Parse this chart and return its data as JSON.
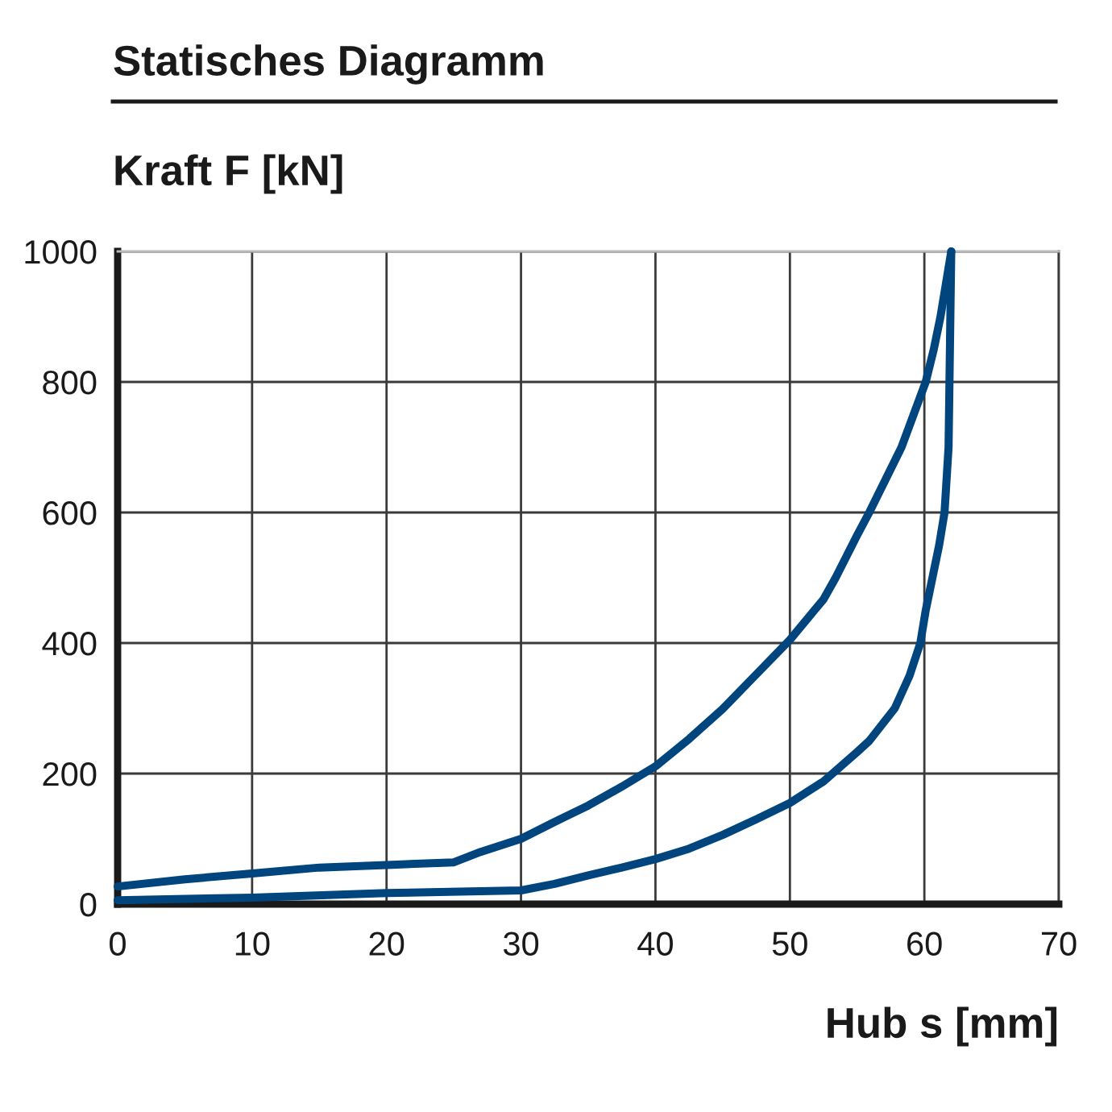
{
  "chart_data": {
    "type": "line",
    "title": "Statisches Diagramm",
    "xlabel": "Hub s [mm]",
    "ylabel": "Kraft F [kN]",
    "xlim": [
      0,
      70
    ],
    "xticks": [
      0,
      10,
      20,
      30,
      40,
      50,
      60,
      70
    ],
    "ylim": [
      0,
      1000
    ],
    "yticks": [
      0,
      200,
      400,
      600,
      800,
      1000
    ],
    "grid": true,
    "line_style": "solid",
    "series": [
      {
        "color": "#00457e",
        "x": [
          0,
          5,
          10,
          15,
          20,
          25,
          27,
          30,
          32.5,
          35,
          37.5,
          40,
          42.5,
          45,
          47.5,
          50,
          52.5,
          53.4,
          55,
          55.9,
          57.1,
          58.3,
          59.2,
          60.1,
          60.7,
          61.2,
          61.6,
          62.0
        ],
        "values": [
          27,
          38,
          47,
          56,
          60,
          64,
          80,
          100,
          126,
          151,
          180,
          211,
          253,
          299,
          352,
          405,
          467,
          500,
          565,
          600,
          650,
          700,
          750,
          800,
          850,
          900,
          950,
          1000
        ]
      },
      {
        "color": "#00457e",
        "x": [
          0,
          10,
          20,
          30,
          32.5,
          35,
          37.5,
          40,
          42.5,
          45,
          47.5,
          50,
          52.5,
          55,
          55.9,
          57.8,
          58.9,
          59.7,
          60.1,
          60.6,
          61.1,
          61.5,
          61.8,
          62.0
        ],
        "values": [
          6,
          10,
          17,
          21,
          31,
          44,
          56,
          69,
          85,
          106,
          130,
          155,
          188,
          233,
          250,
          300,
          350,
          400,
          450,
          500,
          550,
          600,
          700,
          1000
        ]
      }
    ]
  }
}
